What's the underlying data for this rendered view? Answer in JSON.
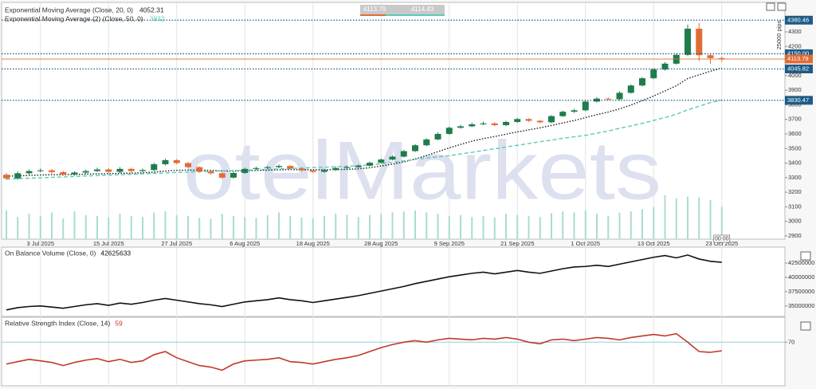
{
  "chart_data": [
    {
      "type": "candlestick",
      "watermark": "otelMarkets",
      "categories": [
        null,
        null,
        null,
        "3 Jul 2025",
        null,
        null,
        null,
        null,
        null,
        "15 Jul 2025",
        null,
        null,
        null,
        null,
        null,
        "27 Jul 2025",
        null,
        null,
        null,
        null,
        null,
        "6 Aug 2025",
        null,
        null,
        null,
        null,
        null,
        "18 Aug 2025",
        null,
        null,
        null,
        null,
        null,
        "28 Aug 2025",
        null,
        null,
        null,
        null,
        null,
        "9 Sep 2025",
        null,
        null,
        null,
        null,
        null,
        "21 Sep 2025",
        null,
        null,
        null,
        null,
        null,
        "1 Oct 2025",
        null,
        null,
        null,
        null,
        null,
        "13 Oct 2025",
        null,
        null,
        null,
        null,
        null,
        "23 Oct 2025"
      ],
      "open": [
        3320,
        3295,
        3330,
        3345,
        3350,
        3338,
        3322,
        3335,
        3345,
        3356,
        3340,
        3360,
        3345,
        3352,
        3392,
        3420,
        3400,
        3372,
        3342,
        3330,
        3300,
        3332,
        3360,
        3366,
        3372,
        3380,
        3362,
        3350,
        3340,
        3352,
        3366,
        3372,
        3382,
        3402,
        3424,
        3444,
        3482,
        3522,
        3562,
        3600,
        3642,
        3652,
        3666,
        3672,
        3660,
        3682,
        3702,
        3690,
        3680,
        3722,
        3752,
        3762,
        3822,
        3842,
        3838,
        3882,
        3932,
        3982,
        4042,
        4082,
        4142,
        4322,
        4140,
        4120
      ],
      "high": [
        3332,
        3342,
        3356,
        3362,
        3360,
        3346,
        3344,
        3355,
        3368,
        3364,
        3372,
        3368,
        3362,
        3402,
        3430,
        3428,
        3408,
        3378,
        3350,
        3338,
        3340,
        3368,
        3374,
        3380,
        3390,
        3386,
        3368,
        3356,
        3360,
        3374,
        3380,
        3390,
        3410,
        3432,
        3452,
        3490,
        3530,
        3570,
        3610,
        3650,
        3662,
        3676,
        3684,
        3680,
        3690,
        3710,
        3708,
        3696,
        3730,
        3760,
        3772,
        3830,
        3852,
        3850,
        3892,
        3940,
        3990,
        4050,
        4092,
        4150,
        4350,
        4360,
        4150,
        4130
      ],
      "low": [
        3283,
        3285,
        3322,
        3336,
        3328,
        3312,
        3314,
        3326,
        3338,
        3330,
        3332,
        3336,
        3338,
        3346,
        3384,
        3392,
        3364,
        3334,
        3320,
        3292,
        3294,
        3326,
        3354,
        3358,
        3364,
        3356,
        3342,
        3332,
        3334,
        3346,
        3360,
        3366,
        3376,
        3396,
        3418,
        3438,
        3476,
        3516,
        3556,
        3594,
        3636,
        3646,
        3660,
        3652,
        3654,
        3676,
        3682,
        3672,
        3674,
        3716,
        3744,
        3756,
        3816,
        3830,
        3830,
        3876,
        3926,
        3976,
        4034,
        4076,
        4136,
        4100,
        4080,
        4095
      ],
      "close": [
        3295,
        3330,
        3345,
        3350,
        3338,
        3322,
        3335,
        3345,
        3356,
        3340,
        3360,
        3345,
        3352,
        3392,
        3420,
        3400,
        3372,
        3342,
        3330,
        3300,
        3332,
        3360,
        3366,
        3372,
        3380,
        3362,
        3350,
        3340,
        3352,
        3366,
        3372,
        3382,
        3402,
        3424,
        3444,
        3482,
        3522,
        3562,
        3600,
        3642,
        3652,
        3666,
        3672,
        3660,
        3682,
        3702,
        3690,
        3680,
        3722,
        3752,
        3762,
        3822,
        3842,
        3838,
        3882,
        3932,
        3982,
        4042,
        4082,
        4142,
        4322,
        4140,
        4120,
        4113.79
      ],
      "up_color": "#1e7d4a",
      "down_color": "#e06c35",
      "series": [
        {
          "name": "Exponential Moving Average (Close, 20, 0)",
          "color": "#1a1a1a",
          "style": "dotted",
          "values": [
            3310,
            3312,
            3315,
            3318,
            3320,
            3320,
            3322,
            3324,
            3326,
            3327,
            3330,
            3331,
            3333,
            3338,
            3345,
            3350,
            3352,
            3351,
            3350,
            3346,
            3345,
            3347,
            3349,
            3351,
            3354,
            3355,
            3355,
            3354,
            3354,
            3355,
            3357,
            3360,
            3368,
            3380,
            3392,
            3408,
            3428,
            3452,
            3478,
            3504,
            3528,
            3550,
            3568,
            3582,
            3598,
            3614,
            3628,
            3642,
            3658,
            3675,
            3692,
            3712,
            3732,
            3750,
            3772,
            3798,
            3828,
            3860,
            3895,
            3930,
            3980,
            4005,
            4030,
            4052.31
          ]
        },
        {
          "name": "Exponential Moving Average (2) (Close, 50, 0)",
          "color": "#5ec9b6",
          "style": "dashed",
          "values": [
            3290,
            3293,
            3296,
            3299,
            3302,
            3305,
            3308,
            3311,
            3314,
            3317,
            3320,
            3323,
            3326,
            3329,
            3332,
            3335,
            3338,
            3341,
            3344,
            3346,
            3348,
            3351,
            3354,
            3357,
            3360,
            3363,
            3366,
            3369,
            3372,
            3375,
            3378,
            3382,
            3388,
            3395,
            3405,
            3415,
            3425,
            3435,
            3443,
            3450,
            3462,
            3474,
            3486,
            3498,
            3510,
            3522,
            3534,
            3546,
            3558,
            3570,
            3580,
            3590,
            3605,
            3620,
            3638,
            3655,
            3672,
            3692,
            3712,
            3735,
            3765,
            3790,
            3815,
            3832
          ]
        }
      ],
      "volume": [
        62,
        48,
        55,
        50,
        58,
        45,
        60,
        52,
        50,
        47,
        55,
        50,
        48,
        58,
        60,
        52,
        50,
        46,
        44,
        55,
        50,
        48,
        46,
        52,
        58,
        50,
        47,
        45,
        50,
        55,
        53,
        48,
        52,
        55,
        58,
        60,
        62,
        58,
        55,
        50,
        52,
        48,
        50,
        47,
        55,
        52,
        50,
        48,
        56,
        60,
        58,
        62,
        55,
        50,
        57,
        60,
        65,
        70,
        95,
        88,
        92,
        90,
        85,
        70
      ],
      "volume_color": "#a9dcd2",
      "ylim": [
        2878,
        4475
      ],
      "yticks": [
        2900,
        3000,
        3100,
        3200,
        3300,
        3400,
        3500,
        3600,
        3700,
        3800,
        3900,
        4000,
        4100,
        4200,
        4300
      ],
      "grid": false,
      "levels": [
        4380.46,
        {
          "value": 4150,
          "label": "4150.00"
        },
        4045.82,
        3830.47
      ],
      "level_color": "#1f5b86",
      "ask": 4114.43,
      "scale_label": "25000 pips",
      "time_label": "00:00"
    },
    {
      "type": "line",
      "series": [
        {
          "name": "On Balance Volume (Close, 0)",
          "color": "#111111",
          "values": [
            34300000,
            34700000,
            34900000,
            35000000,
            34800000,
            34600000,
            34900000,
            35200000,
            35400000,
            35100000,
            35500000,
            35300000,
            35600000,
            36000000,
            36300000,
            36000000,
            35700000,
            35400000,
            35200000,
            34900000,
            35300000,
            35700000,
            35900000,
            36100000,
            36400000,
            36100000,
            35900000,
            35600000,
            35900000,
            36200000,
            36500000,
            36800000,
            37200000,
            37600000,
            38000000,
            38400000,
            38900000,
            39300000,
            39700000,
            40100000,
            40400000,
            40700000,
            40900000,
            40600000,
            40900000,
            41200000,
            40900000,
            40700000,
            41100000,
            41500000,
            41800000,
            41900000,
            42100000,
            41900000,
            42300000,
            42700000,
            43100000,
            43500000,
            43800000,
            43400000,
            43900000,
            43200000,
            42800000,
            42625633
          ]
        }
      ],
      "ylim": [
        33300000,
        45000000
      ],
      "yticks": [
        35000000,
        37500000,
        40000000,
        42500000
      ],
      "grid": false
    },
    {
      "type": "line",
      "series": [
        {
          "name": "Relative Strength Index (Close, 14)",
          "color": "#c0392b",
          "values": [
            42,
            45,
            48,
            46,
            44,
            40,
            44,
            47,
            49,
            45,
            48,
            44,
            46,
            54,
            58,
            50,
            45,
            40,
            38,
            34,
            42,
            46,
            47,
            48,
            50,
            45,
            44,
            42,
            45,
            48,
            50,
            53,
            58,
            63,
            67,
            70,
            72,
            70,
            73,
            75,
            74,
            73,
            75,
            74,
            76,
            74,
            70,
            68,
            73,
            74,
            72,
            74,
            76,
            75,
            73,
            76,
            78,
            80,
            78,
            81,
            70,
            58,
            57,
            59
          ]
        }
      ],
      "ylim": [
        15,
        100
      ],
      "yticks": [
        70
      ],
      "grid": true,
      "grid_color": "#8fd0d8"
    }
  ]
}
